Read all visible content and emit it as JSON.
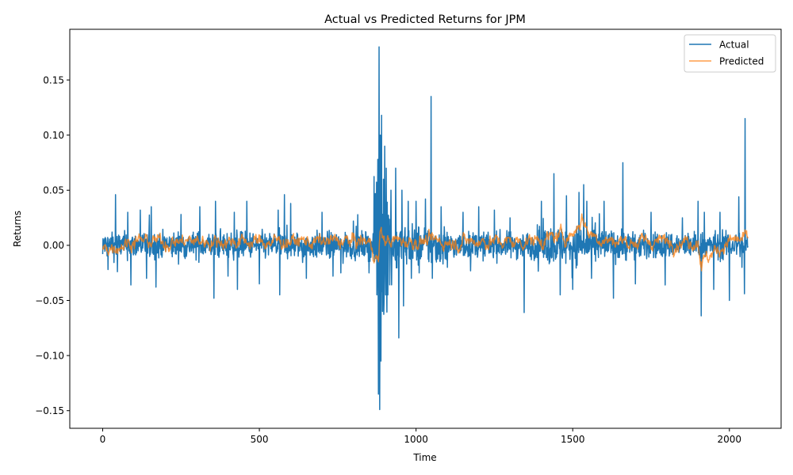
{
  "chart_data": {
    "type": "line",
    "title": "Actual vs Predicted Returns for JPM",
    "xlabel": "Time",
    "ylabel": "Returns",
    "xlim": [
      -105,
      2165
    ],
    "ylim": [
      -0.166,
      0.196
    ],
    "xticks": [
      0,
      500,
      1000,
      1500,
      2000
    ],
    "xtick_labels": [
      "0",
      "500",
      "1000",
      "1500",
      "2000"
    ],
    "yticks": [
      -0.15,
      -0.1,
      -0.05,
      0.0,
      0.05,
      0.1,
      0.15
    ],
    "ytick_labels": [
      "−0.15",
      "−0.10",
      "−0.05",
      "0.00",
      "0.05",
      "0.10",
      "0.15"
    ],
    "grid": false,
    "legend_position": "top-right",
    "n_points": 2060,
    "series": [
      {
        "name": "Actual",
        "color": "#1f77b4",
        "description_points": [
          [
            0,
            -0.008
          ],
          [
            10,
            0.006
          ],
          [
            17,
            -0.022
          ],
          [
            30,
            0.012
          ],
          [
            41,
            0.046
          ],
          [
            47,
            -0.024
          ],
          [
            80,
            0.03
          ],
          [
            90,
            -0.036
          ],
          [
            120,
            0.032
          ],
          [
            140,
            -0.03
          ],
          [
            155,
            0.035
          ],
          [
            170,
            -0.038
          ],
          [
            250,
            0.028
          ],
          [
            310,
            0.035
          ],
          [
            355,
            -0.048
          ],
          [
            360,
            0.04
          ],
          [
            400,
            -0.028
          ],
          [
            420,
            0.03
          ],
          [
            430,
            -0.04
          ],
          [
            460,
            0.04
          ],
          [
            500,
            -0.035
          ],
          [
            560,
            0.032
          ],
          [
            565,
            -0.045
          ],
          [
            580,
            0.046
          ],
          [
            600,
            0.038
          ],
          [
            650,
            -0.03
          ],
          [
            700,
            0.03
          ],
          [
            735,
            -0.028
          ],
          [
            760,
            -0.025
          ],
          [
            800,
            0.022
          ],
          [
            850,
            -0.025
          ],
          [
            870,
            0.047
          ],
          [
            875,
            -0.045
          ],
          [
            878,
            0.078
          ],
          [
            880,
            -0.135
          ],
          [
            882,
            0.18
          ],
          [
            884,
            -0.149
          ],
          [
            886,
            0.1
          ],
          [
            888,
            -0.105
          ],
          [
            890,
            0.118
          ],
          [
            893,
            -0.06
          ],
          [
            896,
            0.06
          ],
          [
            898,
            -0.05
          ],
          [
            900,
            0.09
          ],
          [
            903,
            -0.045
          ],
          [
            905,
            0.07
          ],
          [
            910,
            -0.045
          ],
          [
            920,
            0.05
          ],
          [
            935,
            0.07
          ],
          [
            945,
            -0.084
          ],
          [
            955,
            0.05
          ],
          [
            960,
            -0.055
          ],
          [
            975,
            0.04
          ],
          [
            985,
            -0.03
          ],
          [
            1000,
            0.04
          ],
          [
            1010,
            -0.025
          ],
          [
            1030,
            0.042
          ],
          [
            1048,
            0.135
          ],
          [
            1052,
            -0.03
          ],
          [
            1080,
            0.035
          ],
          [
            1100,
            -0.02
          ],
          [
            1150,
            0.03
          ],
          [
            1200,
            0.035
          ],
          [
            1250,
            0.032
          ],
          [
            1300,
            0.025
          ],
          [
            1345,
            -0.061
          ],
          [
            1400,
            0.04
          ],
          [
            1440,
            0.065
          ],
          [
            1460,
            -0.045
          ],
          [
            1480,
            0.045
          ],
          [
            1500,
            -0.04
          ],
          [
            1520,
            0.048
          ],
          [
            1535,
            0.055
          ],
          [
            1545,
            0.04
          ],
          [
            1560,
            -0.03
          ],
          [
            1600,
            0.04
          ],
          [
            1630,
            -0.048
          ],
          [
            1660,
            0.075
          ],
          [
            1700,
            -0.035
          ],
          [
            1750,
            0.03
          ],
          [
            1795,
            -0.036
          ],
          [
            1850,
            0.025
          ],
          [
            1900,
            0.04
          ],
          [
            1910,
            -0.064
          ],
          [
            1920,
            0.03
          ],
          [
            1950,
            -0.04
          ],
          [
            1970,
            0.03
          ],
          [
            2000,
            -0.05
          ],
          [
            2030,
            0.044
          ],
          [
            2040,
            -0.02
          ],
          [
            2048,
            -0.044
          ],
          [
            2050,
            0.115
          ],
          [
            2060,
            0.005
          ]
        ]
      },
      {
        "name": "Predicted",
        "color": "#ff7f0e",
        "description_points": [
          [
            0,
            -0.003
          ],
          [
            100,
            0.004
          ],
          [
            200,
            0.003
          ],
          [
            300,
            0.004
          ],
          [
            400,
            0.004
          ],
          [
            500,
            0.003
          ],
          [
            600,
            0.004
          ],
          [
            700,
            0.003
          ],
          [
            800,
            0.004
          ],
          [
            850,
            0.003
          ],
          [
            880,
            -0.015
          ],
          [
            885,
            0.012
          ],
          [
            900,
            0.004
          ],
          [
            1000,
            0.004
          ],
          [
            1100,
            0.003
          ],
          [
            1200,
            0.004
          ],
          [
            1300,
            0.003
          ],
          [
            1400,
            0.005
          ],
          [
            1500,
            0.01
          ],
          [
            1530,
            0.025
          ],
          [
            1550,
            0.012
          ],
          [
            1600,
            0.005
          ],
          [
            1700,
            0.003
          ],
          [
            1800,
            0.004
          ],
          [
            1900,
            0.004
          ],
          [
            1910,
            -0.015
          ],
          [
            2000,
            0.004
          ],
          [
            2060,
            0.005
          ]
        ]
      }
    ]
  }
}
